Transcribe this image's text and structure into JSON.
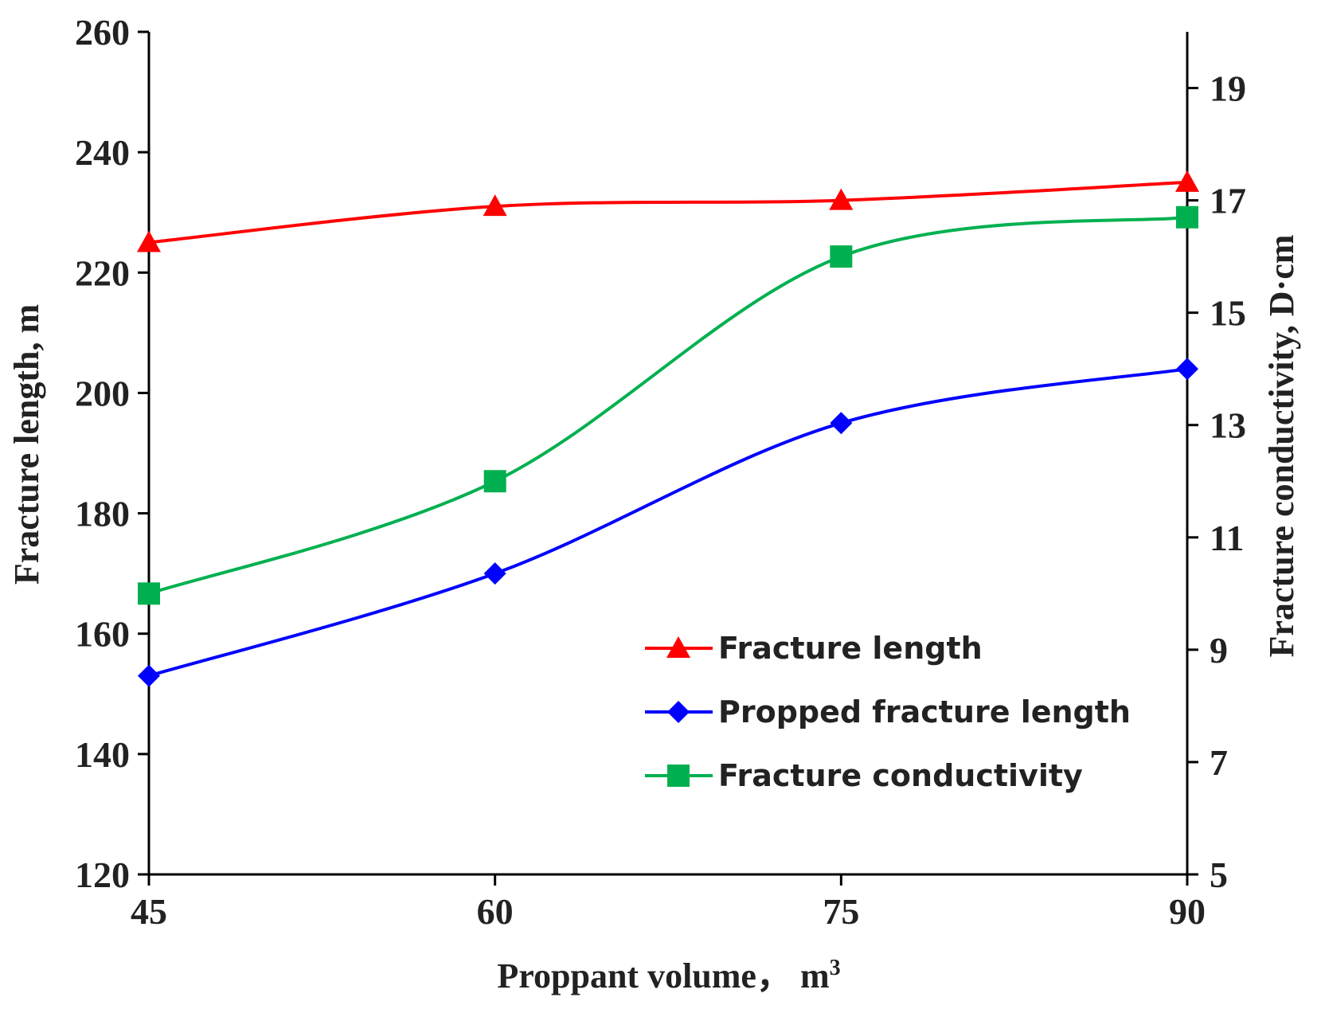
{
  "chart_data": {
    "type": "line",
    "title": "",
    "xlabel_main": "Proppant volume， m",
    "xlabel_sup": "3",
    "ylabel_left": "Fracture length, m",
    "ylabel_right": "Fracture conductivity, D·cm",
    "x": [
      45,
      60,
      75,
      90
    ],
    "x_ticks": [
      "45",
      "60",
      "75",
      "90"
    ],
    "xlim": [
      45,
      90
    ],
    "ylim_left": [
      120,
      260
    ],
    "y_ticks_left": [
      "120",
      "140",
      "160",
      "180",
      "200",
      "220",
      "240",
      "260"
    ],
    "ylim_right": [
      5,
      20
    ],
    "y_ticks_right": [
      "5",
      "7",
      "9",
      "11",
      "13",
      "15",
      "17",
      "19"
    ],
    "grid": false,
    "legend_position": "lower-right",
    "series": [
      {
        "name": "Fracture length",
        "axis": "left",
        "color": "#ff0000",
        "marker": "triangle",
        "values": [
          225,
          231,
          232,
          235
        ]
      },
      {
        "name": "Propped fracture length",
        "axis": "left",
        "color": "#0000ff",
        "marker": "diamond",
        "values": [
          153,
          170,
          195,
          204
        ]
      },
      {
        "name": "Fracture conductivity",
        "axis": "right",
        "color": "#00b050",
        "marker": "square",
        "values": [
          10.0,
          12.0,
          16.0,
          16.7
        ]
      }
    ]
  }
}
